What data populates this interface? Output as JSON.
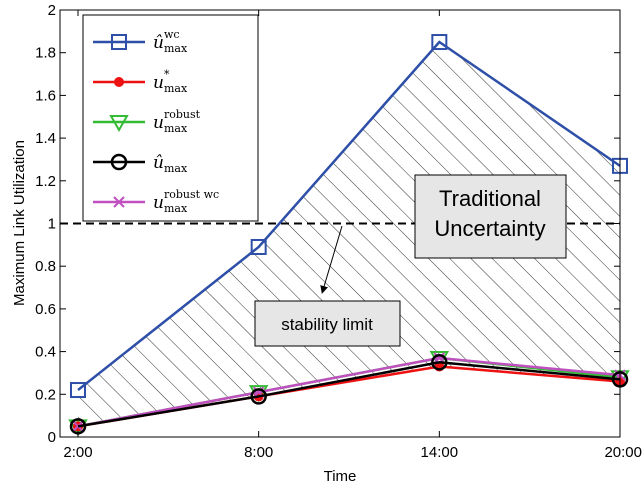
{
  "chart_data": {
    "type": "line",
    "title": "",
    "xlabel": "Time",
    "ylabel": "Maximum Link Utilization",
    "categories": [
      "2:00",
      "8:00",
      "14:00",
      "20:00"
    ],
    "ylim": [
      0,
      2
    ],
    "yticks": [
      "0",
      "0.2",
      "0.4",
      "0.6",
      "0.8",
      "1",
      "1.2",
      "1.4",
      "1.6",
      "1.8",
      "2"
    ],
    "grid": false,
    "legend_position": "top-left",
    "series": [
      {
        "key": "uwc",
        "name": "û_max^wc",
        "base": "û",
        "sub": "max",
        "sup": "wc",
        "marker": "square",
        "color": "#2e4fa8",
        "values": [
          0.22,
          0.89,
          1.85,
          1.27
        ]
      },
      {
        "key": "ustar",
        "name": "u*_max",
        "base": "u",
        "sub": "max",
        "sup": "*",
        "marker": "dot",
        "color": "#ee1111",
        "values": [
          0.05,
          0.19,
          0.33,
          0.26
        ]
      },
      {
        "key": "urobust",
        "name": "u_max^robust",
        "base": "u",
        "sub": "max",
        "sup": "robust",
        "marker": "triangle-down",
        "color": "#33bb33",
        "values": [
          0.05,
          0.21,
          0.37,
          0.28
        ]
      },
      {
        "key": "uhat",
        "name": "û_max",
        "base": "û",
        "sub": "max",
        "sup": "",
        "marker": "circle",
        "color": "#000000",
        "values": [
          0.05,
          0.19,
          0.35,
          0.27
        ]
      },
      {
        "key": "urobustwc",
        "name": "u_max^robust wc",
        "base": "u",
        "sub": "max",
        "sup": "robust wc",
        "marker": "x",
        "color": "#c050c0",
        "values": [
          0.05,
          0.21,
          0.37,
          0.29
        ]
      }
    ],
    "reference_line": {
      "y": 1,
      "style": "dashed",
      "color": "#000000"
    },
    "annotations": {
      "uncertainty_box": [
        "Traditional",
        "Uncertainty"
      ],
      "stability_label": "stability limit"
    }
  }
}
